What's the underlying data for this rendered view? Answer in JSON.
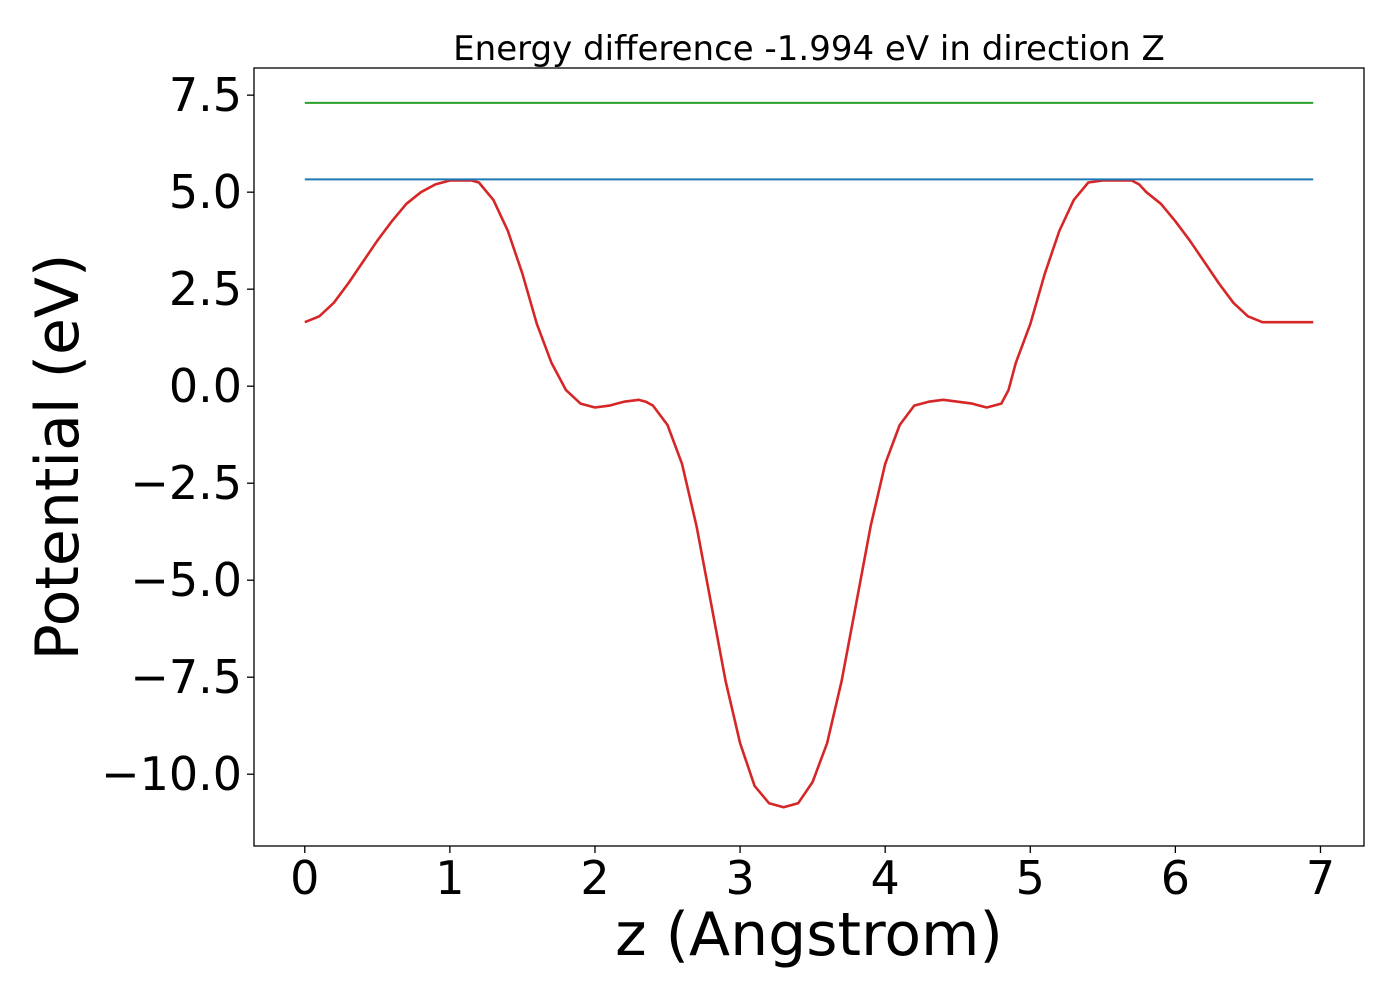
{
  "chart_data": {
    "type": "line",
    "title": "Energy difference -1.994 eV in direction Z",
    "xlabel": "z (Angstrom)",
    "ylabel": "Potential (eV)",
    "xlim": [
      -0.35,
      7.3
    ],
    "ylim": [
      -11.85,
      8.2
    ],
    "x_ticks": [
      0,
      1,
      2,
      3,
      4,
      5,
      6,
      7
    ],
    "x_tick_labels": [
      "0",
      "1",
      "2",
      "3",
      "4",
      "5",
      "6",
      "7"
    ],
    "y_ticks": [
      7.5,
      5.0,
      2.5,
      0.0,
      -2.5,
      -5.0,
      -7.5,
      -10.0
    ],
    "y_tick_labels": [
      "7.5",
      "5.0",
      "2.5",
      "0.0",
      "−2.5",
      "−5.0",
      "−7.5",
      "−10.0"
    ],
    "grid": false,
    "series": [
      {
        "color": "#d62728",
        "x": [
          0,
          0.1,
          0.2,
          0.3,
          0.4,
          0.5,
          0.6,
          0.7,
          0.8,
          0.9,
          1.0,
          1.1,
          1.15,
          1.2,
          1.3,
          1.4,
          1.5,
          1.6,
          1.7,
          1.8,
          1.9,
          2.0,
          2.1,
          2.15,
          2.2,
          2.3,
          2.35,
          2.4,
          2.5,
          2.6,
          2.7,
          2.8,
          2.9,
          3.0,
          3.1,
          3.2,
          3.3,
          3.4,
          3.5,
          3.6,
          3.7,
          3.8,
          3.9,
          4.0,
          4.1,
          4.2,
          4.3,
          4.4,
          4.5,
          4.6,
          4.65,
          4.7,
          4.8,
          4.85,
          4.9,
          5.0,
          5.1,
          5.2,
          5.3,
          5.4,
          5.5,
          5.6,
          5.7,
          5.75,
          5.8,
          5.9,
          6.0,
          6.1,
          6.2,
          6.3,
          6.4,
          6.5,
          6.6,
          6.7,
          6.8,
          6.9,
          6.95
        ],
        "y": [
          1.65,
          1.8,
          2.15,
          2.65,
          3.2,
          3.75,
          4.25,
          4.7,
          5.0,
          5.2,
          5.3,
          5.3,
          5.3,
          5.25,
          4.8,
          4.0,
          2.9,
          1.6,
          0.6,
          -0.1,
          -0.45,
          -0.55,
          -0.5,
          -0.45,
          -0.4,
          -0.35,
          -0.4,
          -0.5,
          -1.0,
          -2.0,
          -3.6,
          -5.6,
          -7.6,
          -9.2,
          -10.3,
          -10.75,
          -10.85,
          -10.75,
          -10.2,
          -9.2,
          -7.6,
          -5.6,
          -3.6,
          -2.0,
          -1.0,
          -0.5,
          -0.4,
          -0.35,
          -0.4,
          -0.45,
          -0.5,
          -0.55,
          -0.45,
          -0.1,
          0.6,
          1.6,
          2.9,
          4.0,
          4.8,
          5.25,
          5.3,
          5.3,
          5.3,
          5.2,
          5.0,
          4.7,
          4.25,
          3.75,
          3.2,
          2.65,
          2.15,
          1.8,
          1.65,
          1.65,
          1.65,
          1.65,
          1.65
        ]
      },
      {
        "color": "#1f77b4",
        "x": [
          0,
          6.95
        ],
        "y": [
          5.33,
          5.33
        ]
      },
      {
        "color": "#2ca02c",
        "x": [
          0,
          6.95
        ],
        "y": [
          7.3,
          7.3
        ]
      }
    ]
  }
}
